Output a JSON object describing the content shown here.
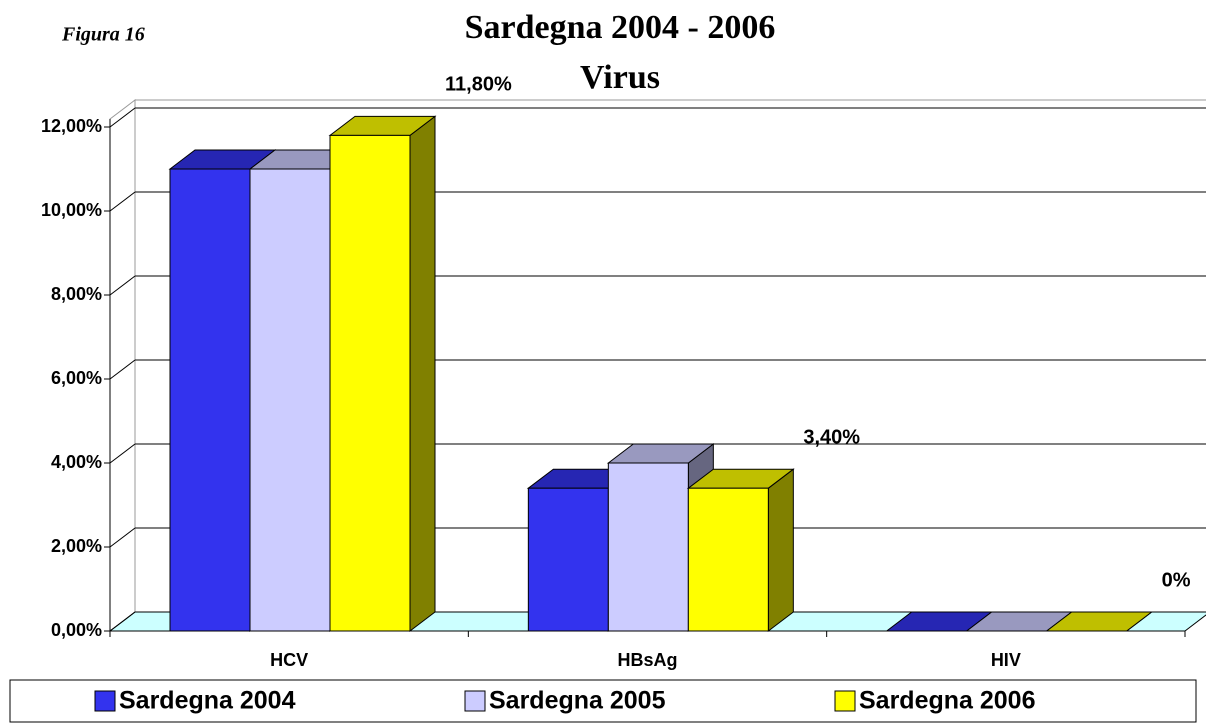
{
  "chart_data": {
    "type": "bar3d",
    "annotation": "Figura 16",
    "title": "Sardegna 2004 - 2006",
    "subtitle": "Virus",
    "categories": [
      "HCV",
      "HBsAg",
      "HIV"
    ],
    "series": [
      {
        "name": "Sardegna 2004",
        "color": "#3333ee",
        "values": [
          11.0,
          3.4,
          0
        ]
      },
      {
        "name": "Sardegna 2005",
        "color": "#ccccff",
        "values": [
          11.0,
          4.0,
          0
        ]
      },
      {
        "name": "Sardegna 2006",
        "color": "#ffff00",
        "values": [
          11.8,
          3.4,
          0
        ],
        "value_labels": [
          "11,80%",
          "3,40%",
          "0%"
        ]
      }
    ],
    "ylim": [
      0,
      12
    ],
    "yticks": [
      {
        "value": 0,
        "label": "0,00%"
      },
      {
        "value": 2,
        "label": "2,00%"
      },
      {
        "value": 4,
        "label": "4,00%"
      },
      {
        "value": 6,
        "label": "6,00%"
      },
      {
        "value": 8,
        "label": "8,00%"
      },
      {
        "value": 10,
        "label": "10,00%"
      },
      {
        "value": 12,
        "label": "12,00%"
      }
    ],
    "grid": true
  }
}
